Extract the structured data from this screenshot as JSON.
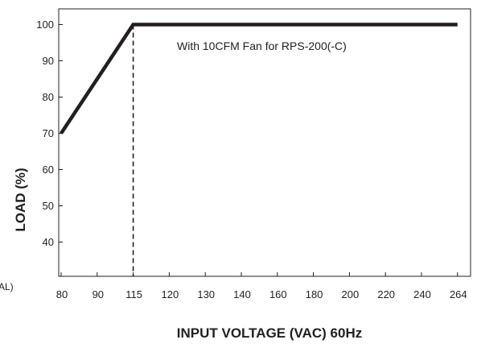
{
  "chart_data": {
    "type": "line",
    "title": "",
    "xlabel": "INPUT VOLTAGE (VAC) 60Hz",
    "ylabel": "LOAD (%)",
    "x_ticks": [
      "80",
      "90",
      "115",
      "120",
      "130",
      "140",
      "160",
      "180",
      "200",
      "220",
      "240",
      "264"
    ],
    "y_ticks": [
      "40",
      "50",
      "60",
      "70",
      "80",
      "90",
      "100"
    ],
    "ylim": [
      30,
      105
    ],
    "grid": false,
    "series": [
      {
        "name": "",
        "color": "#231f20",
        "points": [
          {
            "x": "80",
            "y": 70
          },
          {
            "x": "115",
            "y": 100
          },
          {
            "x": "264",
            "y": 100
          }
        ]
      }
    ],
    "reference_line": {
      "x": "115",
      "style": "dashed"
    },
    "annotations": [
      {
        "text": "With 10CFM Fan for RPS-200(-C)",
        "x": "140",
        "y": 96
      }
    ],
    "edge_fragment": "AL)"
  }
}
